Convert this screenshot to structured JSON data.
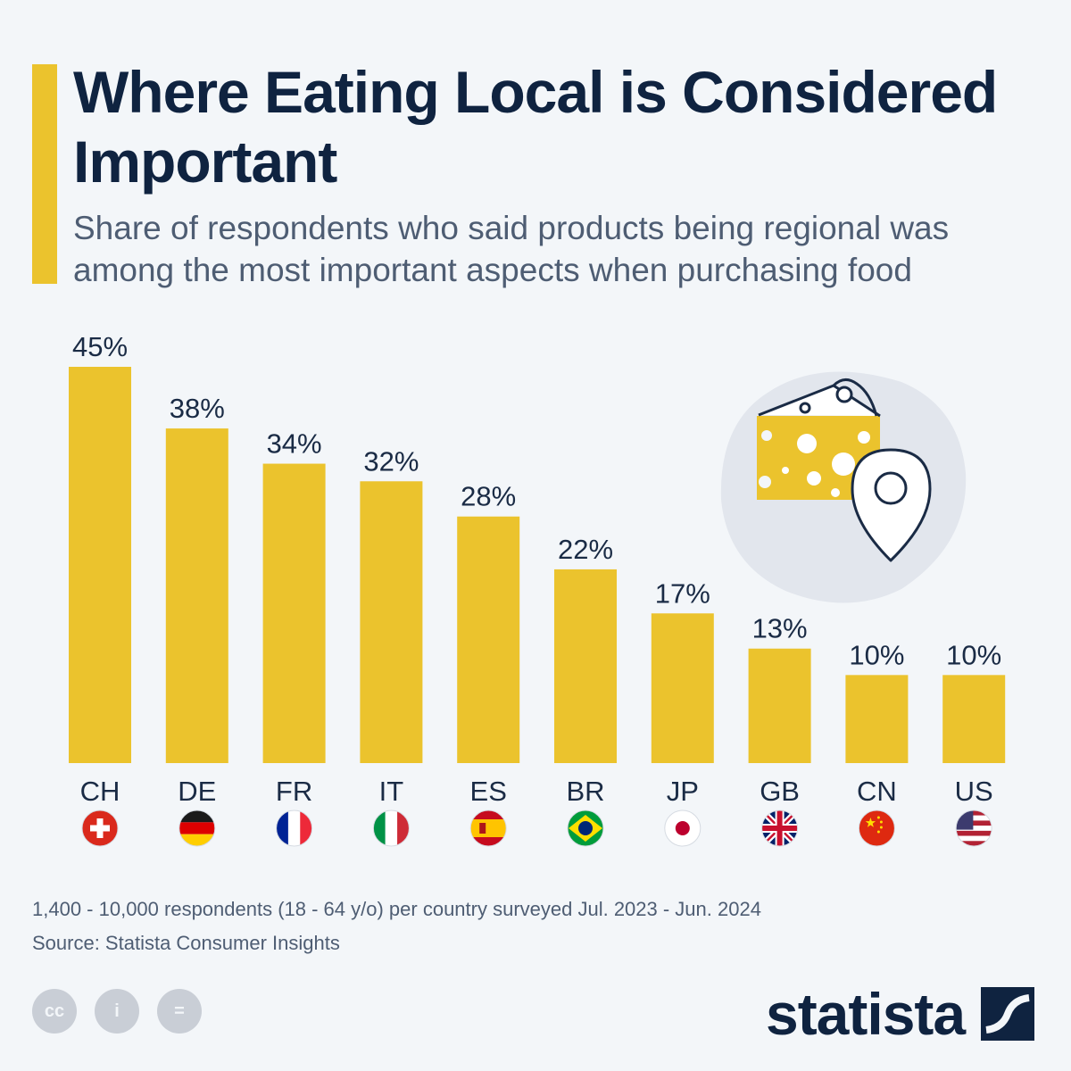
{
  "title": "Where Eating Local is Considered Important",
  "subtitle": "Share of respondents who said products being regional was among the most important aspects when purchasing food",
  "chart_data": {
    "type": "bar",
    "title": "Where Eating Local is Considered Important",
    "subtitle": "Share of respondents who said products being regional was among the most important aspects when purchasing food",
    "categories": [
      "CH",
      "DE",
      "FR",
      "IT",
      "ES",
      "BR",
      "JP",
      "GB",
      "CN",
      "US"
    ],
    "values": [
      45,
      38,
      34,
      32,
      28,
      22,
      17,
      13,
      10,
      10
    ],
    "value_labels": [
      "45%",
      "38%",
      "34%",
      "32%",
      "28%",
      "22%",
      "17%",
      "13%",
      "10%",
      "10%"
    ],
    "unit": "%",
    "ylim": [
      0,
      45
    ],
    "xlabel": "",
    "ylabel": "",
    "grid": false,
    "bar_color": "#ebc32d"
  },
  "flags": [
    "switzerland-flag-icon",
    "germany-flag-icon",
    "france-flag-icon",
    "italy-flag-icon",
    "spain-flag-icon",
    "brazil-flag-icon",
    "japan-flag-icon",
    "uk-flag-icon",
    "china-flag-icon",
    "usa-flag-icon"
  ],
  "illustration": [
    "cheese-icon",
    "map-pin-icon"
  ],
  "footer": {
    "note": "1,400 - 10,000 respondents (18 - 64 y/o) per country surveyed Jul. 2023 - Jun. 2024",
    "source": "Source: Statista Consumer Insights",
    "license_icons": [
      "cc-icon",
      "attribution-icon",
      "no-derivatives-icon"
    ],
    "license_glyphs": [
      "cc",
      "i",
      "="
    ]
  },
  "logo": {
    "text": "statista"
  },
  "colors": {
    "accent": "#ebc32d",
    "title": "#0f2340",
    "subtitle": "#4e5d73"
  }
}
